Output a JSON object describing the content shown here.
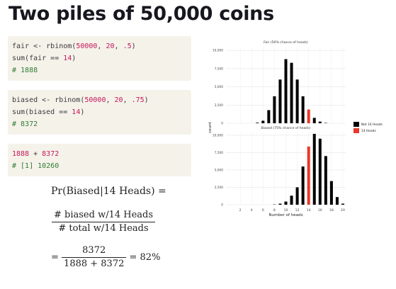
{
  "slide": {
    "title": "Two piles of 50,000 coins"
  },
  "code_blocks": [
    {
      "lines": [
        [
          {
            "t": "fair <- rbinom(",
            "c": ""
          },
          {
            "t": "50000",
            "c": "num"
          },
          {
            "t": ", ",
            "c": ""
          },
          {
            "t": "20",
            "c": "num"
          },
          {
            "t": ", ",
            "c": ""
          },
          {
            "t": ".5",
            "c": "num"
          },
          {
            "t": ")",
            "c": ""
          }
        ],
        [
          {
            "t": "sum(fair == ",
            "c": ""
          },
          {
            "t": "14",
            "c": "num"
          },
          {
            "t": ")",
            "c": ""
          }
        ],
        [
          {
            "t": "# 1888",
            "c": "cmt"
          }
        ]
      ]
    },
    {
      "lines": [
        [
          {
            "t": "biased <- rbinom(",
            "c": ""
          },
          {
            "t": "50000",
            "c": "num"
          },
          {
            "t": ", ",
            "c": ""
          },
          {
            "t": "20",
            "c": "num"
          },
          {
            "t": ", ",
            "c": ""
          },
          {
            "t": ".75",
            "c": "num"
          },
          {
            "t": ")",
            "c": ""
          }
        ],
        [
          {
            "t": "sum(biased == ",
            "c": ""
          },
          {
            "t": "14",
            "c": "num"
          },
          {
            "t": ")",
            "c": ""
          }
        ],
        [
          {
            "t": "# 8372",
            "c": "cmt"
          }
        ]
      ]
    },
    {
      "lines": [
        [
          {
            "t": "1888",
            "c": "num"
          },
          {
            "t": " + ",
            "c": ""
          },
          {
            "t": "8372",
            "c": "num"
          }
        ],
        [
          {
            "t": "# [1] 10260",
            "c": "cmt"
          }
        ]
      ]
    }
  ],
  "formula": {
    "line1": "Pr(Biased|14 Heads) =",
    "numerator": "# biased w/14 Heads",
    "denominator": "# total w/14 Heads",
    "eq_prefix": "=",
    "frac2_num": "8372",
    "frac2_den": "1888 + 8372",
    "result": "= 82%"
  },
  "chart_data": [
    {
      "type": "bar",
      "title": "Fair (50% chance of heads)",
      "categories": [
        0,
        1,
        2,
        3,
        4,
        5,
        6,
        7,
        8,
        9,
        10,
        11,
        12,
        13,
        14,
        15,
        16,
        17,
        18,
        19,
        20
      ],
      "values": [
        0,
        0,
        0,
        0,
        0,
        80,
        350,
        1800,
        3700,
        6000,
        8800,
        8300,
        6000,
        3700,
        1888,
        740,
        230,
        50,
        0,
        0,
        0
      ],
      "highlight_category": 14,
      "ylim": [
        0,
        10500
      ],
      "yticks": [
        0,
        2500,
        5000,
        7500,
        10000
      ],
      "ytick_labels": [
        "0",
        "2,500",
        "5,000",
        "7,500",
        "10,000"
      ]
    },
    {
      "type": "bar",
      "title": "Biased (75% chance of heads)",
      "categories": [
        0,
        1,
        2,
        3,
        4,
        5,
        6,
        7,
        8,
        9,
        10,
        11,
        12,
        13,
        14,
        15,
        16,
        17,
        18,
        19,
        20
      ],
      "values": [
        0,
        0,
        0,
        0,
        0,
        0,
        0,
        0,
        40,
        150,
        450,
        1300,
        2500,
        5500,
        8372,
        10200,
        9500,
        7000,
        3400,
        1100,
        150
      ],
      "highlight_category": 14,
      "ylim": [
        0,
        10500
      ],
      "yticks": [
        0,
        2500,
        5000,
        7500,
        10000
      ],
      "ytick_labels": [
        "0",
        "2,500",
        "5,000",
        "7,500",
        "10,000"
      ]
    }
  ],
  "chart_axes": {
    "ylabel": "count",
    "xlabel": "Number of heads",
    "xticks": [
      2,
      4,
      6,
      8,
      10,
      12,
      14,
      16,
      18,
      20
    ]
  },
  "legend": {
    "placement": "right",
    "items": [
      {
        "label": "Not 14 Heads",
        "color": "#000000"
      },
      {
        "label": "14 Heads",
        "color": "#e8392a"
      }
    ]
  },
  "colors": {
    "bar": "#000000",
    "highlight": "#e8392a",
    "code_bg": "#f5f2ea",
    "number": "#c2185b",
    "comment": "#2e7d32"
  }
}
